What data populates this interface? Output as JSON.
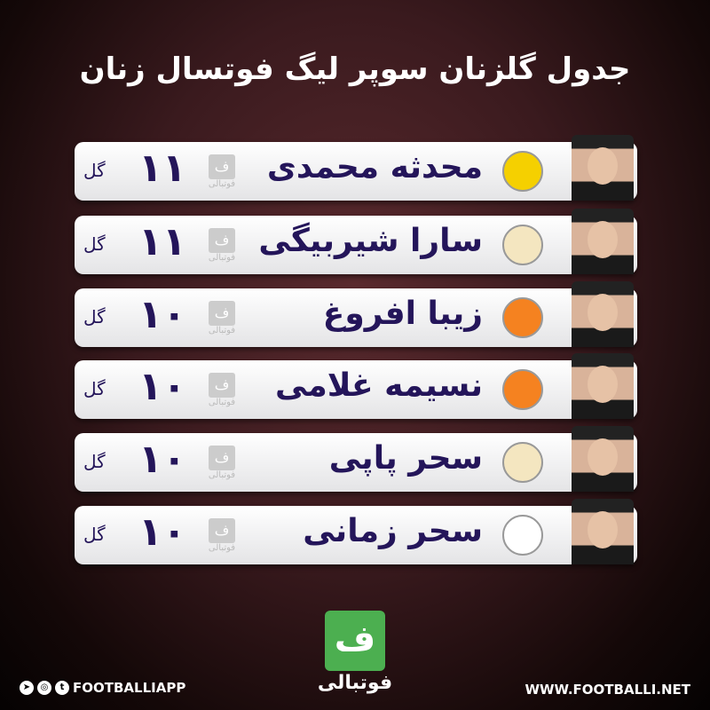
{
  "title": "جدول گلزنان سوپر لیگ فوتسال زنان",
  "goal_unit": "گل",
  "watermark": "فوتبالی",
  "rows": [
    {
      "name": "محدثه محمدی",
      "goals": "۱۱",
      "club_color": "#f5d000"
    },
    {
      "name": "سارا شیربیگی",
      "goals": "۱۱",
      "club_color": "#f4e6c0"
    },
    {
      "name": "زیبا افروغ",
      "goals": "۱۰",
      "club_color": "#f58220"
    },
    {
      "name": "نسیمه غلامی",
      "goals": "۱۰",
      "club_color": "#f58220"
    },
    {
      "name": "سحر پاپی",
      "goals": "۱۰",
      "club_color": "#f4e6c0"
    },
    {
      "name": "سحر زمانی",
      "goals": "۱۰",
      "club_color": "#ffffff"
    }
  ],
  "footer": {
    "brand": "فوتبالی",
    "social_handle": "FOOTBALLIAPP",
    "website": "WWW.FOOTBALLI.NET",
    "brand_color": "#4caf50"
  }
}
